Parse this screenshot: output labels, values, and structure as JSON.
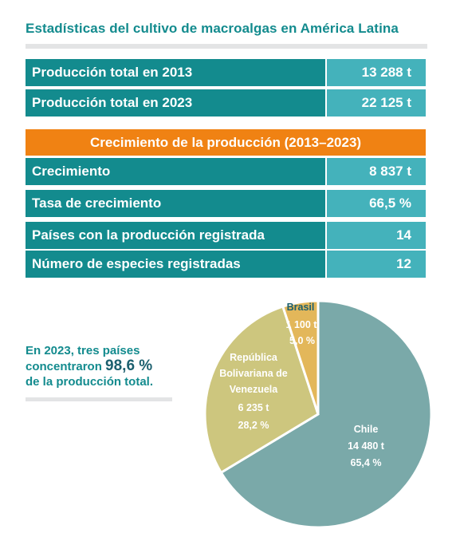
{
  "title": "Estadísticas del cultivo de macroalgas en América Latina",
  "production": [
    {
      "label": "Producción total en 2013",
      "value": "13 288 t"
    },
    {
      "label": "Producción total en 2023",
      "value": "22 125 t"
    }
  ],
  "growth_header": "Crecimiento de la producción (2013–2023)",
  "growth": [
    {
      "label": "Crecimiento",
      "value": "8 837 t"
    },
    {
      "label": "Tasa de crecimiento",
      "value": "66,5 %"
    },
    {
      "label": "Países con la producción registrada",
      "value": "14"
    },
    {
      "label": "Número de especies registradas",
      "value": "12"
    }
  ],
  "note": {
    "line1": "En 2023, tres países",
    "line2_pre": "concentraron ",
    "line2_big": "98,6 %",
    "line3": "de la producción total."
  },
  "colors": {
    "teal_dark": "#138b8e",
    "teal_light": "#44b2bb",
    "orange": "#f08213",
    "chile": "#7aa9a9",
    "venezuela": "#cdc67e",
    "brasil": "#e3b75a"
  },
  "chart_data": {
    "type": "pie",
    "slices": [
      {
        "name": "Chile",
        "value": 14480,
        "value_label": "14 480 t",
        "percent": 65.4,
        "percent_label": "65,4 %"
      },
      {
        "name": "República Bolivariana de Venezuela",
        "value": 6235,
        "value_label": "6 235 t",
        "percent": 28.2,
        "percent_label": "28,2 %"
      },
      {
        "name": "Brasil",
        "value": 1100,
        "value_label": "1 100 t",
        "percent": 5.0,
        "percent_label": "5,0 %"
      }
    ]
  }
}
